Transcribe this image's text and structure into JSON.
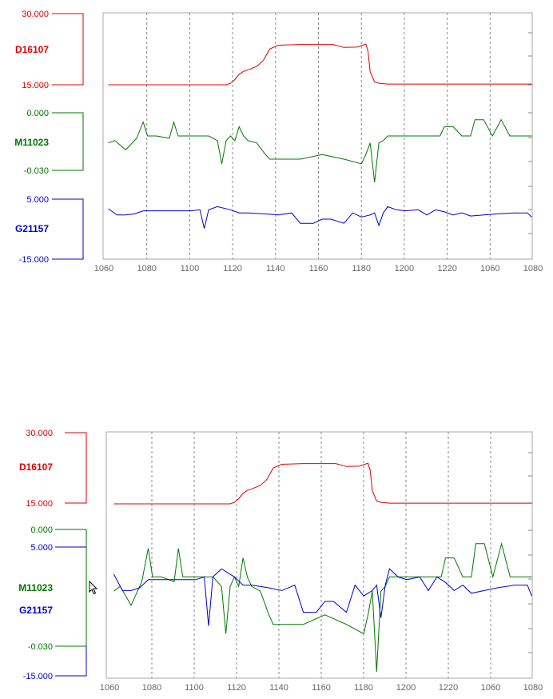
{
  "chart_data": [
    {
      "type": "line",
      "title": "",
      "x_ticks": [
        "1060",
        "1080",
        "1100",
        "1120",
        "1140",
        "1160",
        "1180",
        "1200",
        "1220",
        "1060",
        "1080"
      ],
      "grid": true,
      "series": [
        {
          "name": "D16107",
          "color": "#dd0000",
          "axis_max_label": "30.000",
          "axis_min_label": "15.000",
          "ylim": [
            15,
            30
          ],
          "x": [
            1062,
            1116,
            1118,
            1120,
            1122,
            1124,
            1126,
            1130,
            1133,
            1136,
            1140,
            1150,
            1165,
            1170,
            1176,
            1180,
            1181,
            1182,
            1184,
            1186,
            1190,
            1200,
            1250,
            1256
          ],
          "y": [
            15.0,
            15.0,
            15.4,
            16.4,
            17.8,
            18.6,
            19.0,
            19.9,
            21.5,
            24.6,
            25.6,
            25.8,
            25.8,
            25.0,
            25.1,
            25.9,
            24.0,
            18.5,
            15.8,
            15.4,
            15.2,
            15.2,
            15.2,
            15.2
          ]
        },
        {
          "name": "M11023",
          "color": "#007700",
          "axis_max_label": "0.000",
          "axis_min_label": "-0.030",
          "ylim": [
            -0.03,
            0.0
          ],
          "x": [
            1062,
            1065,
            1070,
            1075,
            1078,
            1080,
            1084,
            1090,
            1092,
            1094,
            1100,
            1108,
            1112,
            1114,
            1116,
            1118,
            1120,
            1122,
            1124,
            1126,
            1130,
            1134,
            1136,
            1140,
            1150,
            1160,
            1170,
            1178,
            1180,
            1182,
            1184,
            1186,
            1188,
            1190,
            1200,
            1210,
            1214,
            1216,
            1220,
            1224,
            1228,
            1230,
            1234,
            1238,
            1242,
            1246,
            1250,
            1256
          ],
          "y": [
            -0.013,
            -0.012,
            -0.016,
            -0.011,
            -0.004,
            -0.01,
            -0.01,
            -0.011,
            -0.004,
            -0.01,
            -0.01,
            -0.01,
            -0.012,
            -0.022,
            -0.012,
            -0.01,
            -0.012,
            -0.006,
            -0.01,
            -0.012,
            -0.013,
            -0.018,
            -0.02,
            -0.02,
            -0.02,
            -0.018,
            -0.02,
            -0.022,
            -0.018,
            -0.013,
            -0.03,
            -0.013,
            -0.012,
            -0.01,
            -0.01,
            -0.01,
            -0.01,
            -0.006,
            -0.006,
            -0.01,
            -0.01,
            -0.003,
            -0.003,
            -0.01,
            -0.003,
            -0.01,
            -0.01,
            -0.01
          ]
        },
        {
          "name": "G21157",
          "color": "#0000cc",
          "axis_max_label": "5.000",
          "axis_min_label": "-15.000",
          "ylim": [
            -15,
            5
          ],
          "x": [
            1062,
            1066,
            1070,
            1074,
            1078,
            1086,
            1100,
            1104,
            1106,
            1108,
            1112,
            1118,
            1122,
            1126,
            1134,
            1140,
            1146,
            1150,
            1156,
            1160,
            1164,
            1170,
            1174,
            1178,
            1182,
            1184,
            1186,
            1188,
            1190,
            1194,
            1198,
            1204,
            1208,
            1212,
            1216,
            1220,
            1224,
            1228,
            1234,
            1240,
            1248,
            1254,
            1256
          ],
          "y": [
            0.0,
            -3.0,
            -3.0,
            -2.5,
            -1.0,
            -1.0,
            -1.0,
            -0.5,
            -9.5,
            -0.5,
            1.0,
            -0.5,
            -2.0,
            -2.0,
            -2.5,
            -3.0,
            -2.0,
            -7.0,
            -7.0,
            -5.0,
            -5.0,
            -7.0,
            -2.0,
            -4.0,
            -3.0,
            -2.0,
            -8.0,
            -2.0,
            1.0,
            -0.5,
            -1.0,
            -0.5,
            -3.0,
            -0.5,
            -1.5,
            -3.0,
            -2.0,
            -3.5,
            -3.0,
            -2.5,
            -2.0,
            -2.0,
            -4.0
          ]
        }
      ]
    },
    {
      "type": "line",
      "title": "",
      "x_ticks": [
        "1060",
        "1080",
        "1100",
        "1120",
        "1140",
        "1160",
        "1180",
        "1200",
        "1220",
        "1060",
        "1080"
      ],
      "grid": true,
      "note_overlay": "M11023 and G21157 share one plotting band",
      "series_ref": [
        "D16107",
        "M11023",
        "G21157"
      ]
    }
  ],
  "panel_top": {
    "labels": {
      "d_max": "30.000",
      "d_name": "D16107",
      "d_min": "15.000",
      "m_max": "0.000",
      "m_name": "M11023",
      "m_min": "-0.030",
      "g_max": "5.000",
      "g_name": "G21157",
      "g_min": "-15.000"
    }
  },
  "panel_bottom": {
    "labels": {
      "d_max": "30.000",
      "d_name": "D16107",
      "d_min": "15.000",
      "m_max": "0.000",
      "g_max": "5.000",
      "m_name": "M11023",
      "g_name": "G21157",
      "m_min": "-0.030",
      "g_min": "-15.000"
    }
  },
  "colors": {
    "red": "#dd0000",
    "green": "#007700",
    "blue": "#0000cc",
    "grid": "#888888",
    "frame": "#aaaaaa"
  }
}
